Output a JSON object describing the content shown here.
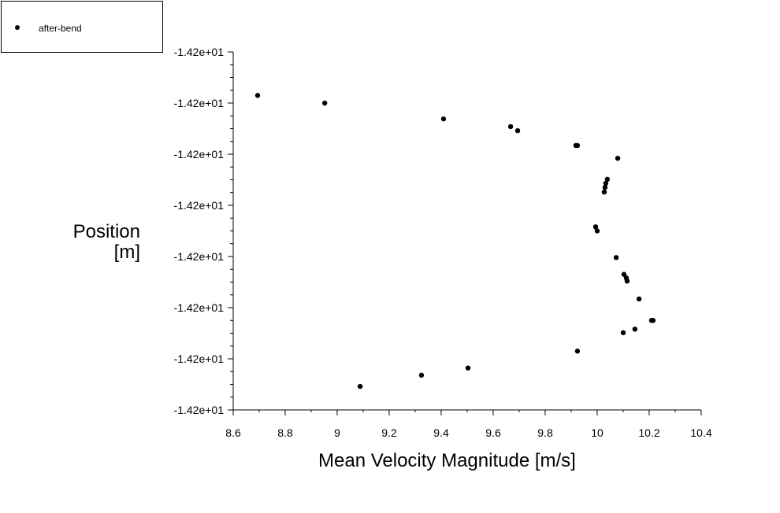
{
  "chart_data": {
    "type": "scatter",
    "title": "",
    "xlabel": "Mean Velocity Magnitude [m/s]",
    "ylabel_lines": [
      "Position",
      "[m]"
    ],
    "xlim": [
      8.6,
      10.4
    ],
    "xticks": [
      8.6,
      8.8,
      9,
      9.2,
      9.4,
      9.6,
      9.8,
      10,
      10.2,
      10.4
    ],
    "xtick_labels": [
      "8.6",
      "8.8",
      "9",
      "9.2",
      "9.4",
      "9.6",
      "9.8",
      "10",
      "10.2",
      "10.4"
    ],
    "ylim": [
      -14.235,
      -14.165
    ],
    "yticks": [
      -14.165,
      -14.175,
      -14.185,
      -14.195,
      -14.205,
      -14.215,
      -14.225,
      -14.235
    ],
    "ytick_labels": [
      "-1.42e+01",
      "-1.42e+01",
      "-1.42e+01",
      "-1.42e+01",
      "-1.42e+01",
      "-1.42e+01",
      "-1.42e+01",
      "-1.42e+01"
    ],
    "grid": false,
    "legend_position": "top-left",
    "marker_color": "#000000",
    "series": [
      {
        "name": "after-bend",
        "x": [
          8.694,
          8.952,
          9.409,
          9.667,
          9.694,
          9.918,
          9.924,
          10.079,
          10.039,
          10.033,
          10.03,
          10.027,
          9.994,
          10.0,
          10.073,
          10.103,
          10.112,
          10.115,
          10.161,
          10.215,
          10.209,
          10.145,
          10.1,
          9.924,
          9.503,
          9.324,
          9.088
        ],
        "y": [
          -14.1735,
          -14.175,
          -14.1781,
          -14.1796,
          -14.1804,
          -14.1833,
          -14.1833,
          -14.1858,
          -14.1899,
          -14.1907,
          -14.1915,
          -14.1924,
          -14.1992,
          -14.2,
          -14.2052,
          -14.2085,
          -14.2092,
          -14.2098,
          -14.2133,
          -14.2175,
          -14.2175,
          -14.2192,
          -14.2199,
          -14.2235,
          -14.2268,
          -14.2282,
          -14.2304
        ]
      }
    ]
  }
}
